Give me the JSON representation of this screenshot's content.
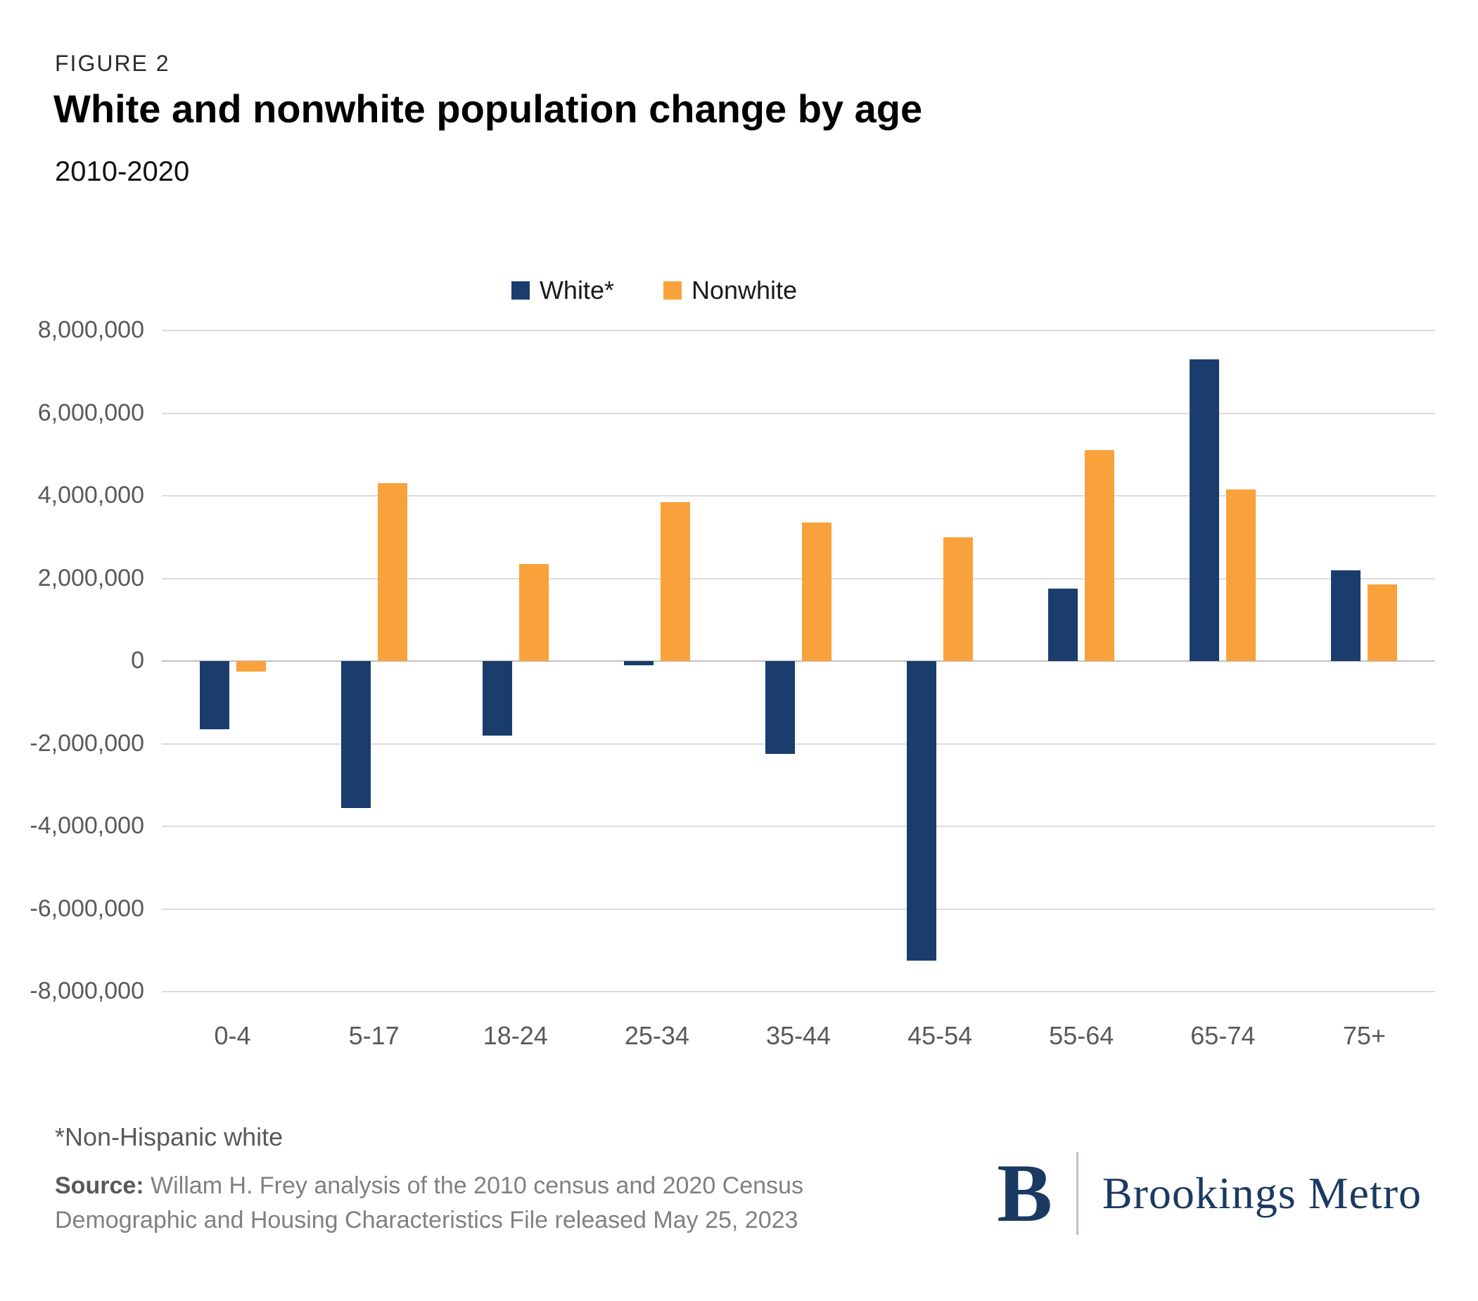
{
  "figure_label": "FIGURE 2",
  "title": "White and nonwhite population change by age",
  "subtitle": "2010-2020",
  "footnote": "*Non-Hispanic white",
  "source_label": "Source:",
  "source_text": " Willam H. Frey analysis of the 2010 census and 2020 Census Demographic and Housing Characteristics File released May 25, 2023",
  "logo": {
    "monogram": "B",
    "wordmark": "Brookings Metro"
  },
  "colors": {
    "navy": "#1A3D6D",
    "orange": "#F9A23C"
  },
  "chart_data": {
    "type": "bar",
    "title": "White and nonwhite population change by age",
    "subtitle": "2010-2020",
    "categories": [
      "0-4",
      "5-17",
      "18-24",
      "25-34",
      "35-44",
      "45-54",
      "55-64",
      "65-74",
      "75+"
    ],
    "series": [
      {
        "name": "White*",
        "color": "#1A3D6D",
        "values": [
          -1650000,
          -3550000,
          -1800000,
          -100000,
          -2250000,
          -7250000,
          1750000,
          7300000,
          2200000
        ]
      },
      {
        "name": "Nonwhite",
        "color": "#F9A23C",
        "values": [
          -250000,
          4300000,
          2350000,
          3850000,
          3350000,
          3000000,
          5100000,
          4150000,
          1850000
        ]
      }
    ],
    "xlabel": "",
    "ylabel": "",
    "ylim": [
      -8000000,
      8000000
    ],
    "ytick_step": 2000000,
    "grid": true,
    "legend_position": "top-center"
  }
}
